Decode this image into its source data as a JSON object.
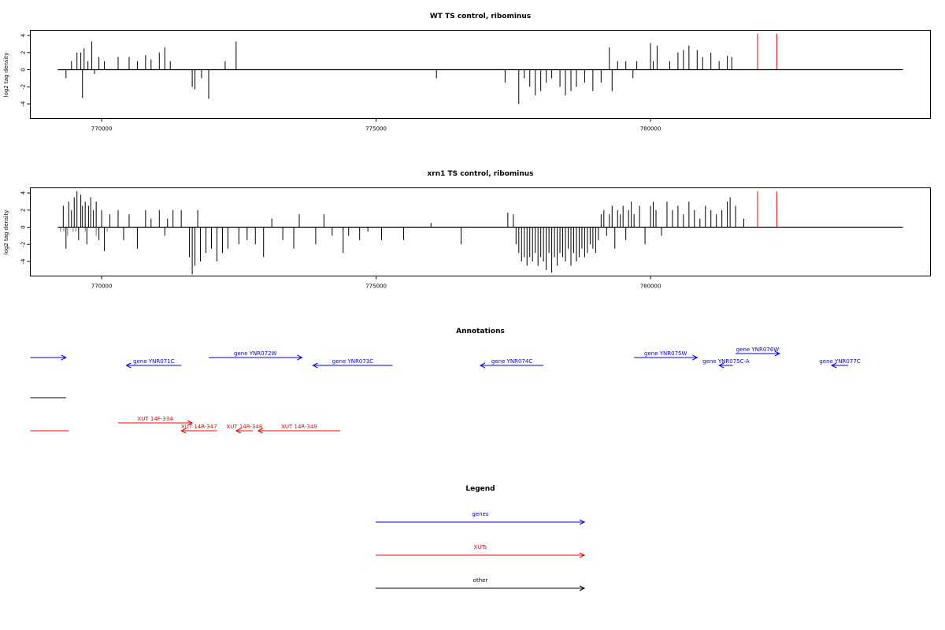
{
  "chart_data": [
    {
      "type": "bar",
      "title": "WT TS control, ribominus",
      "ylabel": "log2 tag density",
      "xlim": [
        768700,
        785100
      ],
      "ylim": [
        -5.7,
        4.6
      ],
      "x_ticks": [
        770000,
        775000,
        780000
      ],
      "x_tick_labels": [
        "770000",
        "775000",
        "780000"
      ],
      "y_ticks": [
        -4,
        -2,
        0,
        2,
        4
      ],
      "y_tick_labels": [
        "-4",
        "-2",
        "0",
        "2",
        "4"
      ],
      "series": [
        {
          "color": "#000000",
          "x": [
            769350,
            769450,
            769550,
            769620,
            769650,
            769680,
            769750,
            769820,
            769870,
            769950,
            770050,
            770300,
            770500,
            770650,
            770800,
            770900,
            771050,
            771150,
            771250,
            771650,
            771700,
            771820,
            771950,
            772250,
            772450,
            776100,
            777350,
            777600,
            777700,
            777800,
            777900,
            778000,
            778100,
            778200,
            778350,
            778450,
            778550,
            778650,
            778800,
            778950,
            779100,
            779250,
            779300,
            779400,
            779550,
            779680,
            779750,
            780000,
            780050,
            780120,
            780350,
            780500,
            780600,
            780700,
            780850,
            780950,
            781100,
            781250,
            781400,
            781480
          ],
          "values": [
            -1.0,
            1.0,
            2.0,
            2.0,
            -3.3,
            2.5,
            1.0,
            3.3,
            -0.5,
            1.5,
            1.0,
            1.5,
            1.5,
            1.0,
            1.7,
            1.2,
            2.0,
            2.6,
            1.0,
            -2.0,
            -2.3,
            -1.0,
            -3.4,
            1.0,
            3.3,
            -1.0,
            -1.5,
            -4.0,
            -1.0,
            -2.0,
            -3.0,
            -2.5,
            -1.5,
            -1.0,
            -2.0,
            -3.0,
            -2.5,
            -2.0,
            -1.5,
            -2.5,
            -1.5,
            2.6,
            -2.5,
            1.0,
            1.0,
            -1.0,
            1.0,
            3.1,
            1.0,
            2.8,
            1.0,
            2.0,
            2.3,
            2.8,
            2.3,
            1.5,
            2.0,
            1.0,
            1.6,
            1.5
          ]
        },
        {
          "color": "#ff0000",
          "x": [
            781950,
            782300
          ],
          "values": [
            4.2,
            4.2
          ]
        }
      ]
    },
    {
      "type": "bar",
      "title": "xrn1 TS control, ribominus",
      "ylabel": "log2 tag density",
      "xlim": [
        768700,
        785100
      ],
      "ylim": [
        -5.7,
        4.6
      ],
      "x_ticks": [
        770000,
        775000,
        780000
      ],
      "x_tick_labels": [
        "770000",
        "775000",
        "780000"
      ],
      "y_ticks": [
        -4,
        -2,
        0,
        2,
        4
      ],
      "y_tick_labels": [
        "-4",
        "-2",
        "0",
        "2",
        "4"
      ],
      "series": [
        {
          "color": "#000000",
          "x": [
            769300,
            769350,
            769400,
            769450,
            769500,
            769550,
            769580,
            769620,
            769650,
            769700,
            769730,
            769760,
            769800,
            769850,
            769900,
            769950,
            770000,
            770050,
            770150,
            770300,
            770400,
            770500,
            770650,
            770800,
            770900,
            771050,
            771150,
            771200,
            771300,
            771450,
            771600,
            771650,
            771700,
            771750,
            771800,
            771900,
            772000,
            772100,
            772200,
            772300,
            772500,
            772650,
            772800,
            772950,
            773100,
            773300,
            773500,
            773600,
            773900,
            774050,
            774200,
            774400,
            774500,
            774700,
            774850,
            775100,
            775500,
            776000,
            776550,
            777400,
            777500,
            777550,
            777600,
            777650,
            777700,
            777750,
            777800,
            777850,
            777900,
            777950,
            778000,
            778050,
            778100,
            778150,
            778200,
            778250,
            778300,
            778350,
            778400,
            778450,
            778500,
            778550,
            778600,
            778650,
            778700,
            778750,
            778800,
            778850,
            778900,
            778950,
            779000,
            779050,
            779100,
            779150,
            779200,
            779250,
            779300,
            779350,
            779400,
            779450,
            779500,
            779550,
            779600,
            779650,
            779700,
            779800,
            779900,
            780000,
            780050,
            780100,
            780200,
            780300,
            780400,
            780500,
            780600,
            780700,
            780800,
            780900,
            781000,
            781100,
            781200,
            781300,
            781400,
            781450,
            781550,
            781700
          ],
          "values": [
            2.5,
            -2.5,
            3.0,
            2.0,
            3.5,
            4.2,
            -1.5,
            3.8,
            2.5,
            3.0,
            -2.0,
            2.5,
            3.5,
            2.0,
            3.0,
            -1.5,
            2.0,
            -2.8,
            1.5,
            2.0,
            -1.5,
            1.5,
            -2.5,
            2.0,
            1.0,
            2.0,
            -1.0,
            1.0,
            2.0,
            2.0,
            -3.5,
            -5.5,
            -4.5,
            2.0,
            -4.0,
            -3.0,
            -2.5,
            -4.0,
            -3.0,
            -2.5,
            -2.0,
            -1.5,
            -2.0,
            -3.5,
            1.0,
            -1.5,
            -2.5,
            1.5,
            -2.0,
            1.5,
            -1.0,
            -3.0,
            -1.0,
            -1.5,
            -0.5,
            -1.5,
            -1.5,
            0.5,
            -2.0,
            1.7,
            1.5,
            -2.0,
            -3.0,
            -4.0,
            -3.5,
            -4.5,
            -3.5,
            -4.0,
            -3.0,
            -4.5,
            -3.5,
            -4.0,
            -5.0,
            -3.0,
            -5.3,
            -3.5,
            -4.5,
            -3.0,
            -3.5,
            -4.0,
            -2.5,
            -4.5,
            -3.0,
            -4.0,
            -3.5,
            -2.5,
            -3.5,
            -3.0,
            -2.0,
            -2.5,
            -3.0,
            -1.5,
            1.5,
            2.0,
            -1.0,
            1.5,
            2.5,
            -2.5,
            2.0,
            1.5,
            2.5,
            -1.5,
            2.0,
            3.0,
            1.5,
            2.5,
            -2.0,
            2.5,
            3.0,
            2.0,
            -1.0,
            3.0,
            2.0,
            2.5,
            1.5,
            3.0,
            2.0,
            1.0,
            2.5,
            2.0,
            1.5,
            2.0,
            3.0,
            3.5,
            2.5,
            1.0
          ],
          "x_grey": [
            769250,
            769310,
            769380,
            769480,
            769530,
            769700,
            769900,
            770100
          ],
          "values_grey": [
            -0.5,
            -0.5,
            -1.0,
            -0.5,
            -0.5,
            -0.5,
            -1.0,
            -0.5
          ]
        },
        {
          "color": "#ff0000",
          "x": [
            781950,
            782300
          ],
          "values": [
            4.2,
            4.2
          ]
        }
      ]
    }
  ],
  "annotations": {
    "title": "Annotations",
    "genes": [
      {
        "label": "",
        "x1": 768700,
        "x2": 769350,
        "strand": "+",
        "row": 1
      },
      {
        "label": "gene YNR071C",
        "x1": 771450,
        "x2": 770450,
        "strand": "-",
        "row": 2
      },
      {
        "label": "gene YNR072W",
        "x1": 771950,
        "x2": 773650,
        "strand": "+",
        "row": 1
      },
      {
        "label": "gene YNR073C",
        "x1": 775300,
        "x2": 773850,
        "strand": "-",
        "row": 2
      },
      {
        "label": "gene YNR074C",
        "x1": 778050,
        "x2": 776900,
        "strand": "-",
        "row": 2
      },
      {
        "label": "gene YNR075W",
        "x1": 779700,
        "x2": 780850,
        "strand": "+",
        "row": 1
      },
      {
        "label": "gene YNR075C-A",
        "x1": 781500,
        "x2": 781250,
        "strand": "-",
        "row": 2
      },
      {
        "label": "gene YNR076W",
        "x1": 781550,
        "x2": 782350,
        "strand": "+",
        "row": 0
      },
      {
        "label": "gene YNR077C",
        "x1": 783600,
        "x2": 783300,
        "strand": "-",
        "row": 2
      }
    ],
    "other": [
      {
        "label": "",
        "x1": 768700,
        "x2": 769350
      }
    ],
    "xuts": [
      {
        "label": "",
        "x1": 768700,
        "x2": 769400,
        "strand": "+",
        "row": 1
      },
      {
        "label": "XUT 14F-334",
        "x1": 770300,
        "x2": 771650,
        "strand": "+",
        "row": 0
      },
      {
        "label": "XUT 14R-347",
        "x1": 772100,
        "x2": 771450,
        "strand": "-",
        "row": 1
      },
      {
        "label": "XUT 14R-348",
        "x1": 772750,
        "x2": 772450,
        "strand": "-",
        "row": 1
      },
      {
        "label": "XUT 14R-349",
        "x1": 774350,
        "x2": 772850,
        "strand": "-",
        "row": 1
      }
    ]
  },
  "legend": {
    "title": "Legend",
    "items": [
      {
        "label": "genes",
        "color": "#0000ff"
      },
      {
        "label": "XUTs",
        "color": "#ff0000"
      },
      {
        "label": "other",
        "color": "#000000"
      }
    ]
  }
}
